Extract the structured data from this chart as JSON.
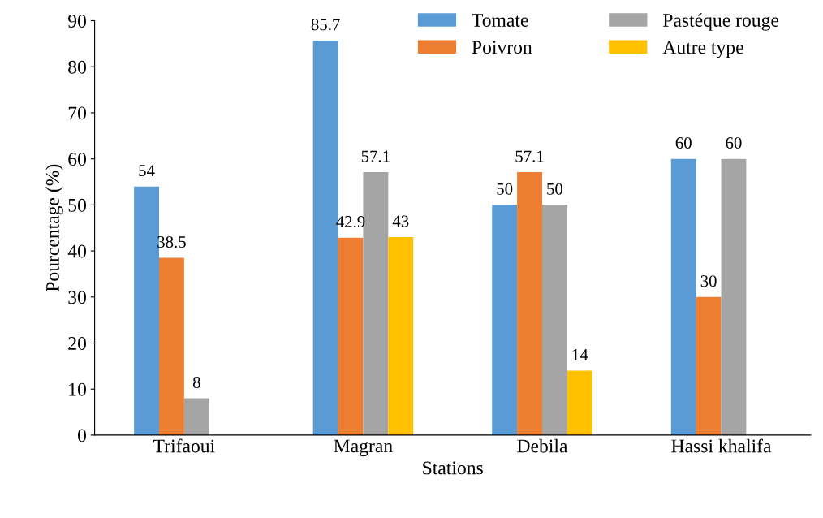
{
  "chart_data": {
    "type": "bar",
    "xlabel": "Stations",
    "ylabel": "Pourcentage (%)",
    "categories": [
      "Trifaoui",
      "Magran",
      "Debila",
      "Hassi khalifa"
    ],
    "series": [
      {
        "name": "Tomate",
        "color": "#5b9bd5",
        "values": [
          54,
          85.7,
          50,
          60
        ]
      },
      {
        "name": "Poivron",
        "color": "#ed7d31",
        "values": [
          38.5,
          42.9,
          57.1,
          30
        ]
      },
      {
        "name": "Pastéque rouge",
        "color": "#a5a5a5",
        "values": [
          8,
          57.1,
          50,
          60
        ]
      },
      {
        "name": "Autre type",
        "color": "#ffc000",
        "values": [
          null,
          43,
          14,
          null
        ]
      }
    ],
    "ylim": [
      0,
      90
    ],
    "yticks": [
      0,
      10,
      20,
      30,
      40,
      50,
      60,
      70,
      80,
      90
    ],
    "data_labels": true,
    "grid": false,
    "legend": "top right"
  }
}
